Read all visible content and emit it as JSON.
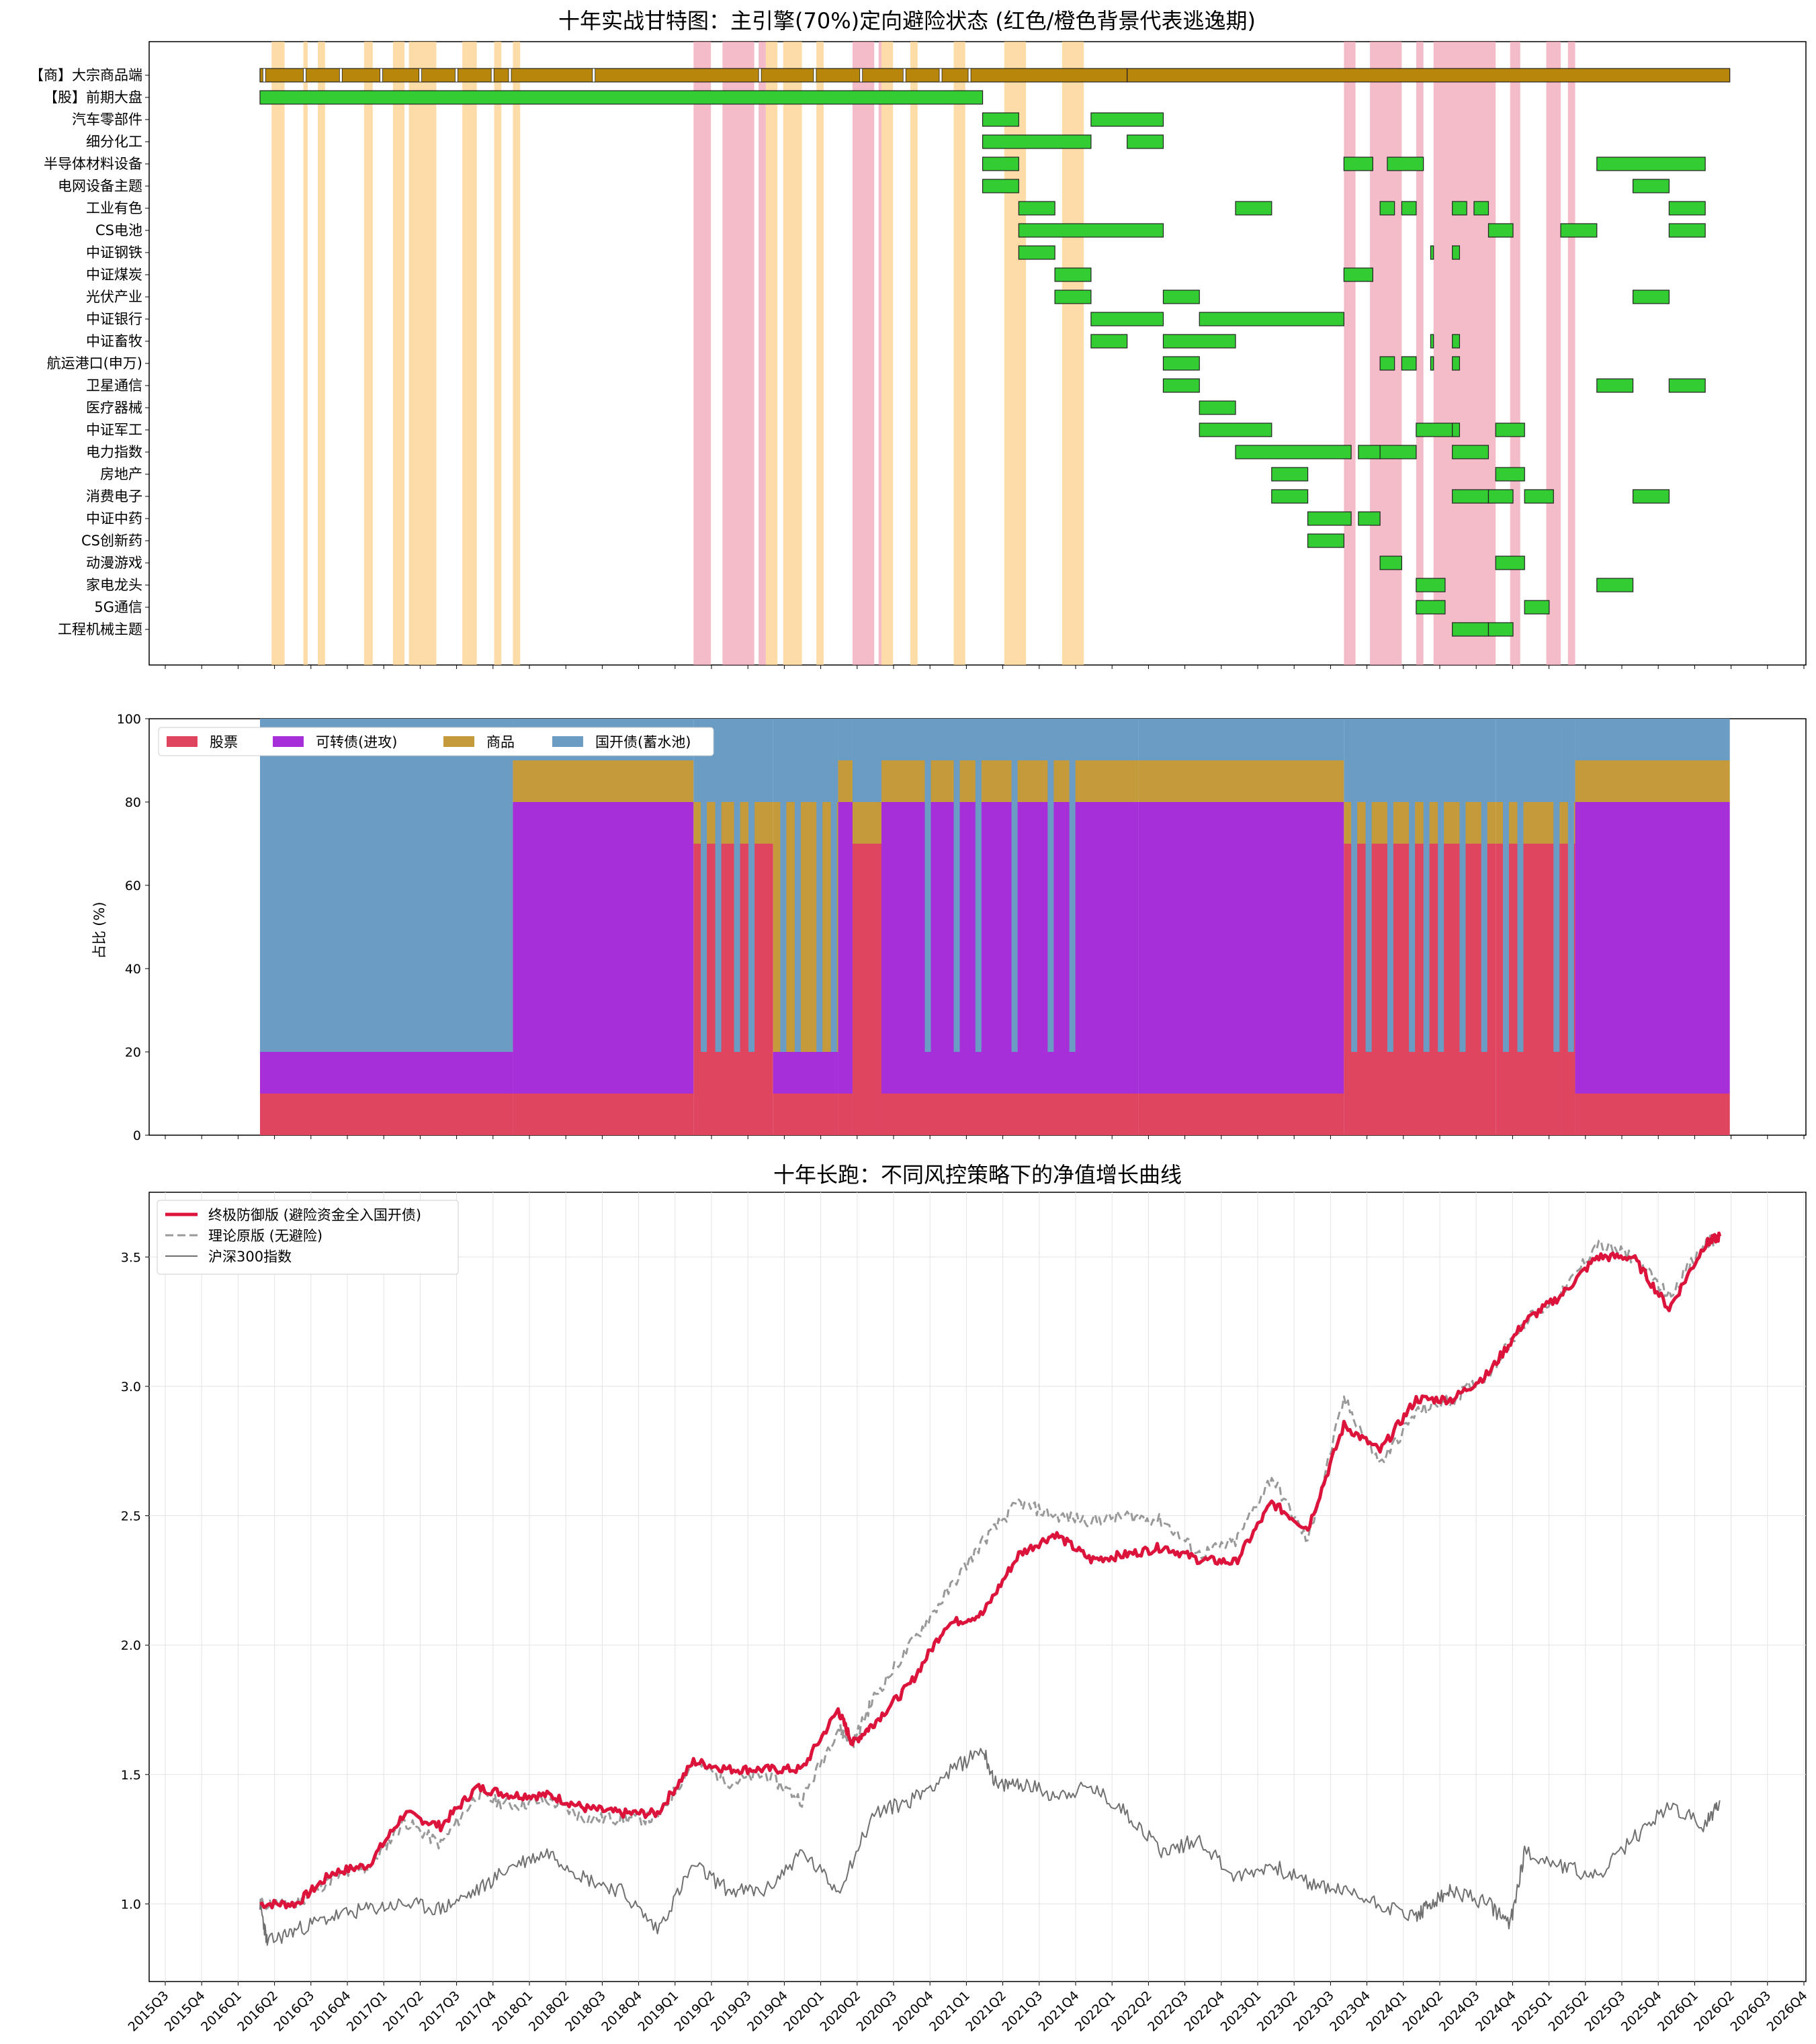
{
  "chart_data": [
    {
      "type": "gantt",
      "title": "十年实战甘特图：主引擎(70%)定向避险状态 (红色/橙色背景代表逃逸期)",
      "time_start": 2016.0,
      "time_end": 2026.1667,
      "categories": [
        "【商】大宗商品端",
        "【股】前期大盘",
        "汽车零部件",
        "细分化工",
        "半导体材料设备",
        "电网设备主题",
        "工业有色",
        "CS电池",
        "中证钢铁",
        "中证煤炭",
        "光伏产业",
        "中证银行",
        "中证畜牧",
        "航运港口(申万)",
        "卫星通信",
        "医疗器械",
        "中证军工",
        "电力指数",
        "房地产",
        "消费电子",
        "中证中药",
        "CS创新药",
        "动漫游戏",
        "家电龙头",
        "5G通信",
        "工程机械主题"
      ],
      "bars": [
        [
          [
            2016.0,
            2022.0,
            "c"
          ],
          [
            2022.0,
            2026.17,
            "c2"
          ]
        ],
        [
          [
            2016.0,
            2021.0,
            "g"
          ]
        ],
        [
          [
            2021.0,
            2021.25
          ],
          [
            2021.75,
            2022.25
          ]
        ],
        [
          [
            2021.0,
            2021.75
          ],
          [
            2022.0,
            2022.25
          ]
        ],
        [
          [
            2021.0,
            2021.25
          ],
          [
            2023.5,
            2023.7
          ],
          [
            2023.8,
            2024.05
          ],
          [
            2025.25,
            2026.0
          ]
        ],
        [
          [
            2021.0,
            2021.25
          ],
          [
            2025.5,
            2025.75
          ]
        ],
        [
          [
            2021.25,
            2021.5
          ],
          [
            2022.75,
            2023.0
          ],
          [
            2023.75,
            2023.85
          ],
          [
            2023.9,
            2024.0
          ],
          [
            2024.25,
            2024.35
          ],
          [
            2024.4,
            2024.5
          ],
          [
            2025.75,
            2026.0
          ]
        ],
        [
          [
            2021.25,
            2022.25
          ],
          [
            2024.5,
            2024.67
          ],
          [
            2025.0,
            2025.25
          ],
          [
            2025.75,
            2026.0
          ]
        ],
        [
          [
            2021.25,
            2021.5
          ],
          [
            2024.1,
            2024.12
          ],
          [
            2024.25,
            2024.3
          ]
        ],
        [
          [
            2021.5,
            2021.75
          ],
          [
            2023.5,
            2023.7
          ]
        ],
        [
          [
            2021.5,
            2021.75
          ],
          [
            2022.25,
            2022.5
          ],
          [
            2025.5,
            2025.75
          ]
        ],
        [
          [
            2021.75,
            2022.25
          ],
          [
            2022.5,
            2023.5
          ]
        ],
        [
          [
            2021.75,
            2022.0
          ],
          [
            2022.25,
            2022.75
          ],
          [
            2024.1,
            2024.12
          ],
          [
            2024.25,
            2024.3
          ]
        ],
        [
          [
            2022.25,
            2022.5
          ],
          [
            2023.75,
            2023.85
          ],
          [
            2023.9,
            2024.0
          ],
          [
            2024.1,
            2024.12
          ],
          [
            2024.25,
            2024.3
          ]
        ],
        [
          [
            2022.25,
            2022.5
          ],
          [
            2025.25,
            2025.5
          ],
          [
            2025.75,
            2026.0
          ]
        ],
        [
          [
            2022.5,
            2022.75
          ]
        ],
        [
          [
            2022.5,
            2023.0
          ],
          [
            2024.0,
            2024.25
          ],
          [
            2024.25,
            2024.3
          ],
          [
            2024.55,
            2024.75
          ]
        ],
        [
          [
            2022.75,
            2023.55
          ],
          [
            2023.6,
            2023.75
          ],
          [
            2023.75,
            2024.0
          ],
          [
            2024.25,
            2024.5
          ]
        ],
        [
          [
            2023.0,
            2023.25
          ],
          [
            2024.55,
            2024.75
          ]
        ],
        [
          [
            2023.0,
            2023.25
          ],
          [
            2024.25,
            2024.5
          ],
          [
            2024.5,
            2024.67
          ],
          [
            2024.75,
            2024.95
          ],
          [
            2025.5,
            2025.75
          ]
        ],
        [
          [
            2023.25,
            2023.55
          ],
          [
            2023.6,
            2023.75
          ]
        ],
        [
          [
            2023.25,
            2023.5
          ]
        ],
        [
          [
            2023.75,
            2023.9
          ],
          [
            2024.55,
            2024.75
          ]
        ],
        [
          [
            2024.0,
            2024.2
          ],
          [
            2025.25,
            2025.5
          ]
        ],
        [
          [
            2024.0,
            2024.2
          ],
          [
            2024.75,
            2024.92
          ]
        ],
        [
          [
            2024.25,
            2024.5
          ],
          [
            2024.5,
            2024.67
          ]
        ]
      ],
      "escape_orange": [
        [
          2016.08,
          2016.17
        ],
        [
          2016.3,
          2016.33
        ],
        [
          2016.4,
          2016.45
        ],
        [
          2016.72,
          2016.78
        ],
        [
          2016.92,
          2017.0
        ],
        [
          2017.03,
          2017.22
        ],
        [
          2017.4,
          2017.5
        ],
        [
          2017.62,
          2017.67
        ],
        [
          2017.75,
          2017.8
        ],
        [
          2019.5,
          2019.58
        ],
        [
          2019.62,
          2019.75
        ],
        [
          2019.85,
          2019.9
        ],
        [
          2020.3,
          2020.38
        ],
        [
          2020.5,
          2020.55
        ],
        [
          2020.8,
          2020.88
        ],
        [
          2021.15,
          2021.3
        ],
        [
          2021.55,
          2021.7
        ]
      ],
      "escape_red": [
        [
          2019.0,
          2019.12
        ],
        [
          2019.2,
          2019.42
        ],
        [
          2019.45,
          2019.5
        ],
        [
          2020.1,
          2020.25
        ],
        [
          2020.28,
          2020.3
        ],
        [
          2023.5,
          2023.58
        ],
        [
          2023.68,
          2023.9
        ],
        [
          2024.0,
          2024.05
        ],
        [
          2024.12,
          2024.55
        ],
        [
          2024.65,
          2024.72
        ],
        [
          2024.9,
          2025.0
        ],
        [
          2025.05,
          2025.1
        ]
      ]
    },
    {
      "type": "area",
      "ylabel": "占比 (%)",
      "ylim": [
        0,
        100
      ],
      "legend": [
        "股票",
        "可转债(进攻)",
        "商品",
        "国开债(蓄水池)"
      ],
      "colors": {
        "stock": "#e04560",
        "cb": "#a62fd9",
        "comm": "#c49a3a",
        "bond": "#6a9cc4",
        "axis_bg": "#ffffff"
      },
      "time_start": 2016.0,
      "time_end": 2026.1667,
      "regimes": {
        "A": [
          10,
          10,
          0,
          80
        ],
        "B": [
          10,
          10,
          70,
          10
        ],
        "C": [
          10,
          70,
          10,
          10
        ],
        "D": [
          10,
          10,
          60,
          20
        ],
        "E": [
          70,
          0,
          10,
          20
        ]
      },
      "segments": [
        [
          2016.0,
          2017.75,
          "A"
        ],
        [
          2017.75,
          2019.0,
          "C"
        ],
        [
          2019.0,
          2019.55,
          "E"
        ],
        [
          2019.55,
          2020.0,
          "D"
        ],
        [
          2020.0,
          2020.1,
          "C"
        ],
        [
          2020.1,
          2020.3,
          "E"
        ],
        [
          2020.3,
          2022.08,
          "C"
        ],
        [
          2022.08,
          2023.5,
          "C"
        ],
        [
          2023.5,
          2024.55,
          "E"
        ],
        [
          2024.55,
          2025.0,
          "E"
        ],
        [
          2025.0,
          2025.1,
          "E"
        ],
        [
          2025.1,
          2026.17,
          "C"
        ]
      ]
    },
    {
      "type": "line",
      "title": "十年长跑：不同风控策略下的净值增长曲线",
      "ylim": [
        0.7,
        3.75
      ],
      "x_ticks": [
        "2015Q3",
        "2015Q4",
        "2016Q1",
        "2016Q2",
        "2016Q3",
        "2016Q4",
        "2017Q1",
        "2017Q2",
        "2017Q3",
        "2017Q4",
        "2018Q1",
        "2018Q2",
        "2018Q3",
        "2018Q4",
        "2019Q1",
        "2019Q2",
        "2019Q3",
        "2019Q4",
        "2020Q1",
        "2020Q2",
        "2020Q3",
        "2020Q4",
        "2021Q1",
        "2021Q2",
        "2021Q3",
        "2021Q4",
        "2022Q1",
        "2022Q2",
        "2022Q3",
        "2022Q4",
        "2023Q1",
        "2023Q2",
        "2023Q3",
        "2023Q4",
        "2024Q1",
        "2024Q2",
        "2024Q3",
        "2024Q4",
        "2025Q1",
        "2025Q2",
        "2025Q3",
        "2025Q4",
        "2026Q1",
        "2026Q2",
        "2026Q3",
        "2026Q4"
      ],
      "y_ticks": [
        "1.0",
        "1.5",
        "2.0",
        "2.5",
        "3.0",
        "3.5"
      ],
      "y_tick_values": [
        1.0,
        1.5,
        2.0,
        2.5,
        3.0,
        3.5
      ],
      "series": [
        {
          "name": "终极防御版 (避险资金全入国开债)",
          "color": "#dc143c",
          "x": [
            2016.0,
            2016.25,
            2016.5,
            2016.75,
            2017.0,
            2017.25,
            2017.5,
            2017.75,
            2018.0,
            2018.25,
            2018.5,
            2018.75,
            2019.0,
            2019.25,
            2019.5,
            2019.75,
            2020.0,
            2020.1,
            2020.25,
            2020.5,
            2020.75,
            2021.0,
            2021.25,
            2021.5,
            2021.75,
            2022.0,
            2022.25,
            2022.5,
            2022.75,
            2023.0,
            2023.25,
            2023.5,
            2023.75,
            2024.0,
            2024.25,
            2024.5,
            2024.75,
            2025.0,
            2025.25,
            2025.5,
            2025.75,
            2026.0,
            2026.1
          ],
          "y": [
            1.0,
            1.0,
            1.12,
            1.15,
            1.35,
            1.3,
            1.45,
            1.42,
            1.42,
            1.37,
            1.35,
            1.35,
            1.55,
            1.52,
            1.52,
            1.52,
            1.75,
            1.62,
            1.7,
            1.85,
            2.08,
            2.12,
            2.35,
            2.43,
            2.33,
            2.35,
            2.38,
            2.33,
            2.32,
            2.55,
            2.45,
            2.85,
            2.75,
            2.95,
            2.95,
            3.05,
            3.25,
            3.35,
            3.5,
            3.5,
            3.3,
            3.55,
            3.58
          ]
        },
        {
          "name": "理论原版 (无避险)",
          "color": "#999999",
          "x": [
            2016.0,
            2016.25,
            2016.5,
            2016.75,
            2017.0,
            2017.25,
            2017.5,
            2017.75,
            2018.0,
            2018.25,
            2018.5,
            2018.75,
            2019.0,
            2019.25,
            2019.5,
            2019.75,
            2020.0,
            2020.1,
            2020.25,
            2020.5,
            2020.75,
            2021.0,
            2021.25,
            2021.5,
            2021.75,
            2022.0,
            2022.25,
            2022.5,
            2022.75,
            2023.0,
            2023.25,
            2023.5,
            2023.75,
            2024.0,
            2024.25,
            2024.5,
            2024.75,
            2025.0,
            2025.25,
            2025.5,
            2025.75,
            2026.0,
            2026.1
          ],
          "y": [
            1.0,
            1.0,
            1.1,
            1.14,
            1.32,
            1.23,
            1.42,
            1.38,
            1.4,
            1.33,
            1.33,
            1.33,
            1.55,
            1.47,
            1.5,
            1.4,
            1.68,
            1.62,
            1.8,
            2.0,
            2.2,
            2.4,
            2.55,
            2.5,
            2.48,
            2.5,
            2.48,
            2.35,
            2.4,
            2.65,
            2.4,
            2.95,
            2.7,
            2.9,
            2.95,
            3.05,
            3.25,
            3.35,
            3.55,
            3.5,
            3.35,
            3.55,
            3.58
          ]
        },
        {
          "name": "沪深300指数",
          "color": "#707070",
          "x": [
            2016.0,
            2016.05,
            2016.25,
            2016.5,
            2016.75,
            2017.0,
            2017.25,
            2017.5,
            2017.75,
            2018.0,
            2018.25,
            2018.5,
            2018.75,
            2019.0,
            2019.25,
            2019.5,
            2019.75,
            2020.0,
            2020.25,
            2020.5,
            2020.75,
            2021.0,
            2021.1,
            2021.25,
            2021.5,
            2021.75,
            2022.0,
            2022.25,
            2022.5,
            2022.75,
            2023.0,
            2023.25,
            2023.5,
            2023.75,
            2024.0,
            2024.1,
            2024.25,
            2024.5,
            2024.65,
            2024.75,
            2025.0,
            2025.25,
            2025.5,
            2025.75,
            2026.0,
            2026.1
          ],
          "y": [
            1.0,
            0.85,
            0.9,
            0.95,
            0.98,
            1.0,
            0.98,
            1.05,
            1.15,
            1.2,
            1.1,
            1.05,
            0.9,
            1.15,
            1.05,
            1.05,
            1.2,
            1.05,
            1.35,
            1.4,
            1.5,
            1.6,
            1.45,
            1.47,
            1.42,
            1.45,
            1.35,
            1.2,
            1.25,
            1.1,
            1.15,
            1.08,
            1.05,
            1.0,
            0.95,
            1.0,
            1.05,
            1.0,
            0.92,
            1.2,
            1.15,
            1.1,
            1.25,
            1.38,
            1.3,
            1.4
          ]
        }
      ]
    }
  ]
}
